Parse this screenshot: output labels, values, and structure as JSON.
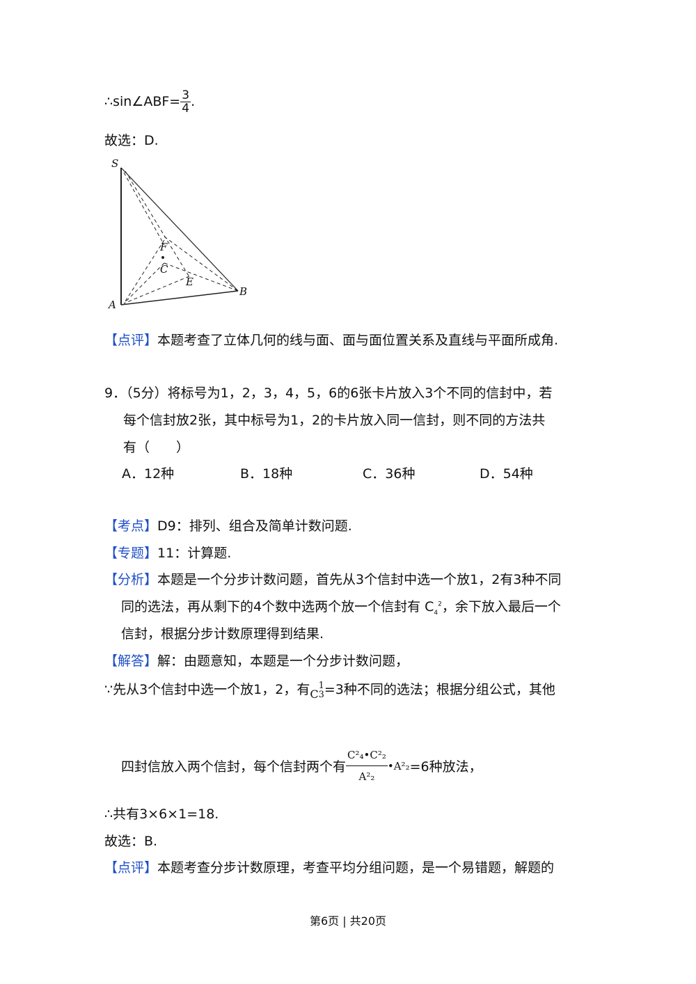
{
  "prev": {
    "sin_prefix": "∴sin∠ABF=",
    "sin_num": "3",
    "sin_den": "4",
    "sin_suffix": ".",
    "answer": "故选：D.",
    "figure_labels": {
      "S": "S",
      "A": "A",
      "B": "B",
      "F": "F",
      "C": "C",
      "E": "E"
    },
    "comment_tag": "【点评】",
    "comment": "本题考查了立体几何的线与面、面与面位置关系及直线与平面所成角."
  },
  "q9": {
    "line1": "9．（5分）将标号为1，2，3，4，5，6的6张卡片放入3个不同的信封中，若",
    "line2": "每个信封放2张，其中标号为1，2的卡片放入同一信封，则不同的方法共",
    "line3": "有（　　）",
    "options": [
      "A．12种",
      "B．18种",
      "C．36种",
      "D．54种"
    ],
    "kaodian_tag": "【考点】",
    "kaodian": "D9：排列、组合及简单计数问题.",
    "zhuanti_tag": "【专题】",
    "zhuanti": "11：计算题.",
    "fenxi_tag": "【分析】",
    "fenxi1": "本题是一个分步计数问题，首先从3个信封中选一个放1，2有3种不同",
    "fenxi2a": "同的选法，再从剩下的4个数中选两个放一个信封有 C",
    "fenxi2_sub": "4",
    "fenxi2_sup": "2",
    "fenxi2b": "，余下放入最后一个",
    "fenxi3": "信封，根据分步计数原理得到结果.",
    "jieda_tag": "【解答】",
    "jieda1": "解：由题意知，本题是一个分步计数问题，",
    "jieda2a": "∵先从3个信封中选一个放1，2，有",
    "jieda2_c": "C",
    "jieda2_sup": "1",
    "jieda2_sub": "3",
    "jieda2b": "=3种不同的选法；根据分组公式，其他",
    "jieda3a": "四封信放入两个信封，每个信封两个有",
    "jieda3_num": "C²₄•C²₂",
    "jieda3_den": "A²₂",
    "jieda3_mid": "•A²₂",
    "jieda3b": "=6种放法，",
    "jieda4": "∴共有3×6×1=18.",
    "answer": "故选：B.",
    "comment_tag": "【点评】",
    "comment": "本题考查分步计数原理，考查平均分组问题，是一个易错题，解题的"
  },
  "footer": "第6页 | 共20页",
  "colors": {
    "tag": "#2050c8",
    "text": "#111111"
  }
}
